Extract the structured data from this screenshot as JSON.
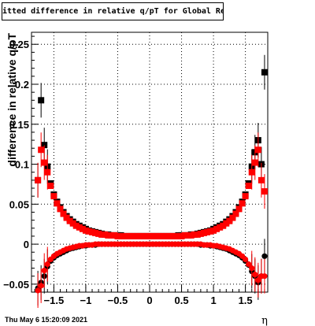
{
  "title": "itted difference in relative q/pT  for Global Rec Pion Etap T",
  "timestamp": "Thu May  6 15:20:09 2021",
  "colors": {
    "series_black": "#000000",
    "series_red": "#ff0000",
    "grid": "#000000"
  },
  "chart_data": {
    "type": "scatter",
    "title": "itted difference in relative q/pT  for Global Rec Pion Etap T",
    "xlabel": "η",
    "ylabel": "difference in relative q/pT",
    "xlim": [
      -1.85,
      1.85
    ],
    "ylim": [
      -0.06,
      0.265
    ],
    "x_ticks": [
      -1.5,
      -1,
      -0.5,
      0,
      0.5,
      1,
      1.5
    ],
    "x_tick_labels": [
      "−1.5",
      "−1",
      "−0.5",
      "0",
      "0.5",
      "1",
      "1.5"
    ],
    "y_ticks": [
      -0.05,
      0,
      0.05,
      0.1,
      0.15,
      0.2,
      0.25
    ],
    "y_tick_labels": [
      "−0.05",
      "0",
      "0.05",
      "0.1",
      "0.15",
      "0.2",
      "0.25"
    ],
    "grid": true,
    "series": [
      {
        "marker": "square",
        "color": "#000000",
        "x": [
          -1.75,
          -1.7,
          -1.65,
          -1.6,
          -1.55,
          -1.5,
          -1.45,
          -1.4,
          -1.35,
          -1.3,
          -1.25,
          -1.2,
          -1.15,
          -1.1,
          -1.05,
          -1.0,
          -0.95,
          -0.9,
          -0.85,
          -0.8,
          -0.75,
          -0.7,
          -0.65,
          -0.6,
          -0.55,
          -0.5,
          -0.45,
          -0.4,
          -0.35,
          -0.3,
          -0.25,
          -0.2,
          -0.15,
          -0.1,
          -0.05,
          0.0,
          0.05,
          0.1,
          0.15,
          0.2,
          0.25,
          0.3,
          0.35,
          0.4,
          0.45,
          0.5,
          0.55,
          0.6,
          0.65,
          0.7,
          0.75,
          0.8,
          0.85,
          0.9,
          0.95,
          1.0,
          1.05,
          1.1,
          1.15,
          1.2,
          1.25,
          1.3,
          1.35,
          1.4,
          1.45,
          1.5,
          1.55,
          1.6,
          1.65,
          1.7,
          1.75,
          1.8
        ],
        "y": [
          0.08,
          0.18,
          0.124,
          0.097,
          0.076,
          0.062,
          0.053,
          0.046,
          0.04,
          0.035,
          0.031,
          0.028,
          0.025,
          0.023,
          0.021,
          0.019,
          0.017,
          0.016,
          0.015,
          0.014,
          0.013,
          0.012,
          0.012,
          0.011,
          0.011,
          0.011,
          0.011,
          0.01,
          0.01,
          0.01,
          0.01,
          0.01,
          0.01,
          0.01,
          0.01,
          0.01,
          0.01,
          0.01,
          0.01,
          0.01,
          0.01,
          0.01,
          0.01,
          0.01,
          0.011,
          0.011,
          0.011,
          0.011,
          0.012,
          0.012,
          0.013,
          0.014,
          0.015,
          0.016,
          0.017,
          0.019,
          0.021,
          0.023,
          0.025,
          0.028,
          0.031,
          0.035,
          0.04,
          0.046,
          0.053,
          0.062,
          0.076,
          0.097,
          0.115,
          0.13,
          0.1,
          0.215
        ]
      },
      {
        "marker": "square",
        "color": "#ff0000",
        "x": [
          -1.75,
          -1.7,
          -1.65,
          -1.6,
          -1.55,
          -1.5,
          -1.45,
          -1.4,
          -1.35,
          -1.3,
          -1.25,
          -1.2,
          -1.15,
          -1.1,
          -1.05,
          -1.0,
          -0.95,
          -0.9,
          -0.85,
          -0.8,
          -0.75,
          -0.7,
          -0.65,
          -0.6,
          -0.55,
          -0.5,
          -0.45,
          -0.4,
          -0.35,
          -0.3,
          -0.25,
          -0.2,
          -0.15,
          -0.1,
          -0.05,
          0.0,
          0.05,
          0.1,
          0.15,
          0.2,
          0.25,
          0.3,
          0.35,
          0.4,
          0.45,
          0.5,
          0.55,
          0.6,
          0.65,
          0.7,
          0.75,
          0.8,
          0.85,
          0.9,
          0.95,
          1.0,
          1.05,
          1.1,
          1.15,
          1.2,
          1.25,
          1.3,
          1.35,
          1.4,
          1.45,
          1.5,
          1.55,
          1.6,
          1.65,
          1.7,
          1.75,
          1.8
        ],
        "y": [
          0.08,
          0.118,
          0.102,
          0.09,
          0.073,
          0.06,
          0.051,
          0.044,
          0.038,
          0.033,
          0.029,
          0.026,
          0.023,
          0.021,
          0.019,
          0.017,
          0.016,
          0.015,
          0.014,
          0.013,
          0.012,
          0.012,
          0.011,
          0.011,
          0.011,
          0.01,
          0.01,
          0.01,
          0.01,
          0.01,
          0.01,
          0.01,
          0.01,
          0.01,
          0.01,
          0.01,
          0.01,
          0.01,
          0.01,
          0.01,
          0.01,
          0.01,
          0.01,
          0.01,
          0.01,
          0.01,
          0.011,
          0.011,
          0.011,
          0.012,
          0.012,
          0.013,
          0.014,
          0.015,
          0.016,
          0.017,
          0.019,
          0.021,
          0.023,
          0.026,
          0.029,
          0.033,
          0.038,
          0.044,
          0.051,
          0.06,
          0.073,
          0.09,
          0.102,
          0.118,
          0.08,
          0.066
        ]
      },
      {
        "marker": "circle",
        "color": "#000000",
        "x": [
          -1.75,
          -1.7,
          -1.65,
          -1.6,
          -1.55,
          -1.5,
          -1.45,
          -1.4,
          -1.35,
          -1.3,
          -1.25,
          -1.2,
          -1.15,
          -1.1,
          -1.05,
          -1.0,
          -0.95,
          -0.9,
          -0.85,
          -0.8,
          -0.75,
          -0.7,
          -0.65,
          -0.6,
          -0.55,
          -0.5,
          -0.45,
          -0.4,
          -0.35,
          -0.3,
          -0.25,
          -0.2,
          -0.15,
          -0.1,
          -0.05,
          0.0,
          0.05,
          0.1,
          0.15,
          0.2,
          0.25,
          0.3,
          0.35,
          0.4,
          0.45,
          0.5,
          0.55,
          0.6,
          0.65,
          0.7,
          0.75,
          0.8,
          0.85,
          0.9,
          0.95,
          1.0,
          1.05,
          1.1,
          1.15,
          1.2,
          1.25,
          1.3,
          1.35,
          1.4,
          1.45,
          1.5,
          1.55,
          1.6,
          1.65,
          1.7,
          1.75,
          1.8
        ],
        "y": [
          -0.055,
          -0.048,
          -0.04,
          -0.028,
          -0.021,
          -0.017,
          -0.014,
          -0.012,
          -0.01,
          -0.008,
          -0.006,
          -0.005,
          -0.004,
          -0.003,
          -0.002,
          -0.002,
          -0.001,
          -0.001,
          -0.001,
          0.0,
          0.0,
          0.0,
          0.0,
          0.0,
          0.0,
          0.0,
          0.0,
          0.0,
          0.0,
          0.0,
          0.0,
          0.0,
          0.0,
          0.0,
          0.0,
          0.0,
          0.0,
          0.0,
          0.0,
          0.0,
          0.0,
          0.0,
          0.0,
          0.0,
          0.0,
          0.0,
          0.0,
          0.0,
          0.0,
          0.0,
          0.0,
          -0.001,
          -0.001,
          -0.001,
          -0.002,
          -0.002,
          -0.003,
          -0.004,
          -0.005,
          -0.006,
          -0.008,
          -0.01,
          -0.012,
          -0.014,
          -0.017,
          -0.021,
          -0.026,
          -0.034,
          -0.04,
          -0.048,
          -0.04,
          -0.015
        ]
      },
      {
        "marker": "circle",
        "color": "#ff0000",
        "x": [
          -1.75,
          -1.7,
          -1.65,
          -1.6,
          -1.55,
          -1.5,
          -1.45,
          -1.4,
          -1.35,
          -1.3,
          -1.25,
          -1.2,
          -1.15,
          -1.1,
          -1.05,
          -1.0,
          -0.95,
          -0.9,
          -0.85,
          -0.8,
          -0.75,
          -0.7,
          -0.65,
          -0.6,
          -0.55,
          -0.5,
          -0.45,
          -0.4,
          -0.35,
          -0.3,
          -0.25,
          -0.2,
          -0.15,
          -0.1,
          -0.05,
          0.0,
          0.05,
          0.1,
          0.15,
          0.2,
          0.25,
          0.3,
          0.35,
          0.4,
          0.45,
          0.5,
          0.55,
          0.6,
          0.65,
          0.7,
          0.75,
          0.8,
          0.85,
          0.9,
          0.95,
          1.0,
          1.05,
          1.1,
          1.15,
          1.2,
          1.25,
          1.3,
          1.35,
          1.4,
          1.45,
          1.5,
          1.55,
          1.6,
          1.65,
          1.7,
          1.75,
          1.8
        ],
        "y": [
          -0.058,
          -0.052,
          -0.033,
          -0.025,
          -0.019,
          -0.015,
          -0.012,
          -0.01,
          -0.008,
          -0.006,
          -0.005,
          -0.004,
          -0.003,
          -0.002,
          -0.002,
          -0.001,
          -0.001,
          -0.001,
          0.0,
          0.0,
          0.0,
          0.0,
          0.0,
          0.0,
          0.0,
          0.0,
          0.0,
          0.0,
          0.0,
          0.0,
          0.0,
          0.0,
          0.0,
          0.0,
          0.0,
          0.0,
          0.0,
          0.0,
          0.0,
          0.0,
          0.0,
          0.0,
          0.0,
          0.0,
          0.0,
          0.0,
          0.0,
          0.0,
          0.0,
          0.0,
          0.0,
          0.0,
          -0.001,
          -0.001,
          -0.001,
          -0.002,
          -0.002,
          -0.003,
          -0.004,
          -0.005,
          -0.006,
          -0.008,
          -0.01,
          -0.012,
          -0.015,
          -0.019,
          -0.025,
          -0.03,
          -0.038,
          -0.045,
          -0.04,
          -0.04
        ]
      }
    ]
  }
}
